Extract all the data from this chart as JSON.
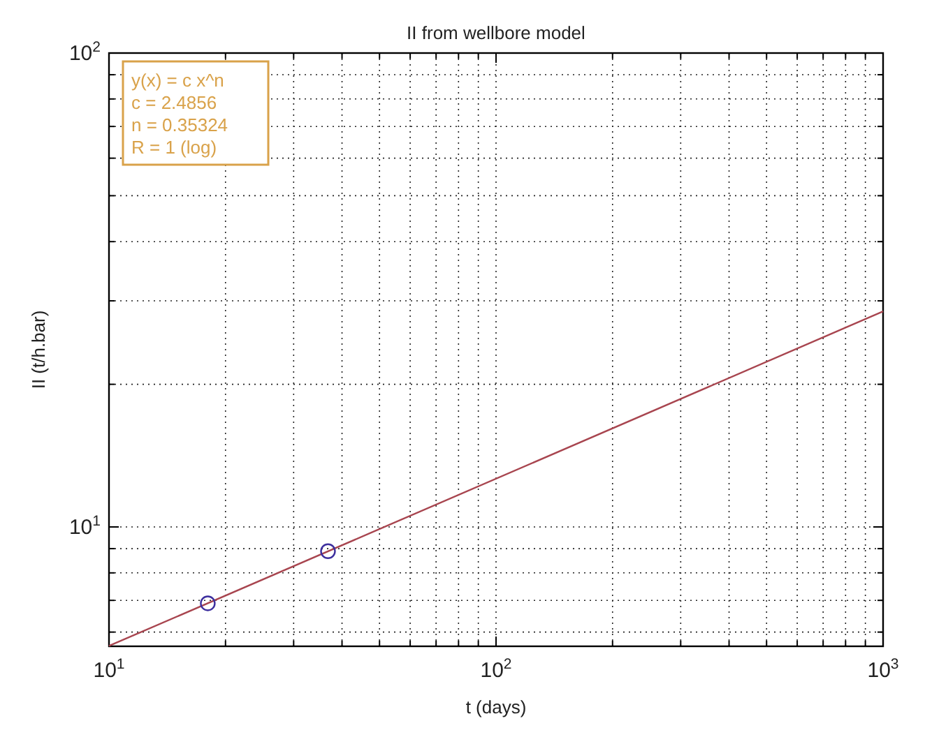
{
  "chart_data": {
    "type": "scatter",
    "title": "II from wellbore model",
    "xlabel": "t (days)",
    "ylabel": "II (t/h.bar)",
    "log": "xy",
    "grid": true,
    "marker": "circle",
    "xlim": [
      10,
      1000
    ],
    "ylim": [
      5.6,
      100
    ],
    "xticks": [
      {
        "value": 10,
        "label": "10$^{1}$"
      },
      {
        "value": 20,
        "label": null
      },
      {
        "value": 30,
        "label": null
      },
      {
        "value": 40,
        "label": null
      },
      {
        "value": 50,
        "label": null
      },
      {
        "value": 60,
        "label": null
      },
      {
        "value": 70,
        "label": null
      },
      {
        "value": 80,
        "label": null
      },
      {
        "value": 90,
        "label": null
      },
      {
        "value": 100,
        "label": "10$^{2}$"
      },
      {
        "value": 200,
        "label": null
      },
      {
        "value": 300,
        "label": null
      },
      {
        "value": 400,
        "label": null
      },
      {
        "value": 500,
        "label": null
      },
      {
        "value": 600,
        "label": null
      },
      {
        "value": 700,
        "label": null
      },
      {
        "value": 800,
        "label": null
      },
      {
        "value": 900,
        "label": null
      },
      {
        "value": 1000,
        "label": "10$^{3}$"
      }
    ],
    "yticks": [
      {
        "value": 6,
        "label": null
      },
      {
        "value": 7,
        "label": null
      },
      {
        "value": 8,
        "label": null
      },
      {
        "value": 9,
        "label": null
      },
      {
        "value": 10,
        "label": "10$^{1}$"
      },
      {
        "value": 20,
        "label": null
      },
      {
        "value": 30,
        "label": null
      },
      {
        "value": 40,
        "label": null
      },
      {
        "value": 50,
        "label": null
      },
      {
        "value": 60,
        "label": null
      },
      {
        "value": 70,
        "label": null
      },
      {
        "value": 80,
        "label": null
      },
      {
        "value": 90,
        "label": null
      },
      {
        "value": 100,
        "label": "10$^{2}$"
      }
    ],
    "series": [
      {
        "type": "line",
        "color": "#a8454f",
        "x": [
          10,
          1000
        ],
        "values": [
          5.61,
          28.5
        ],
        "marker": "none",
        "line_style": "solid"
      },
      {
        "color": "#3d2f9e",
        "x": [
          18,
          36.8
        ],
        "values": [
          6.9,
          8.89
        ]
      }
    ],
    "annotations": [
      "y(x) = c x^n",
      "c = 2.4856",
      "n = 0.35324",
      "R = 1  (log)"
    ]
  }
}
